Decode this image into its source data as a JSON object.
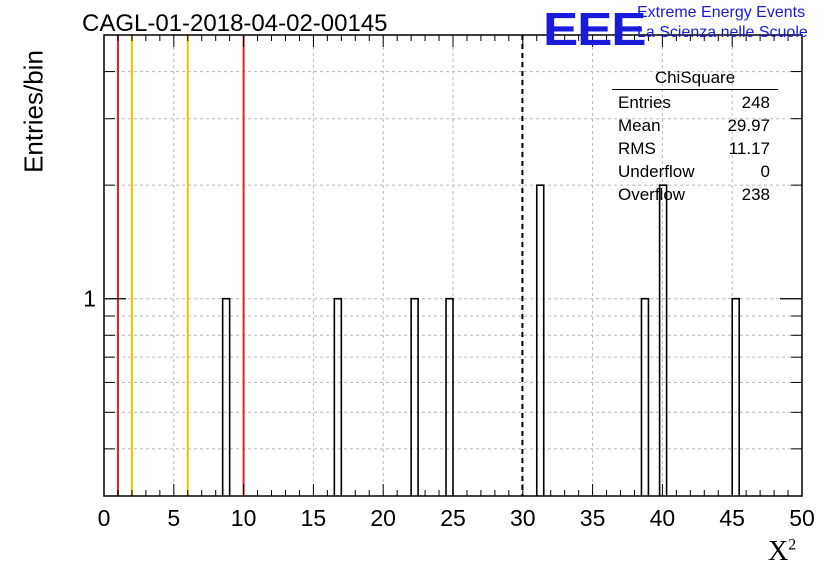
{
  "header": {
    "run_title": "CAGL-01-2018-04-02-00145",
    "logo_text": "EEE",
    "logo_line1": "Extreme Energy Events",
    "logo_line2": "La Scienza nelle Scuole"
  },
  "stats_box": {
    "title": "ChiSquare",
    "rows": [
      {
        "label": "Entries",
        "value": "248"
      },
      {
        "label": "Mean",
        "value": "29.97"
      },
      {
        "label": "RMS",
        "value": "11.17"
      },
      {
        "label": "Underflow",
        "value": "0"
      },
      {
        "label": "Overflow",
        "value": "238"
      }
    ]
  },
  "chart_data": {
    "type": "bar",
    "title": "CAGL-01-2018-04-02-00145",
    "xlabel": "X",
    "xlabel_sup": "2",
    "ylabel": "Entries/bin",
    "xlim": [
      0,
      50
    ],
    "ylim": [
      0.3,
      5
    ],
    "y_scale": "log",
    "grid": true,
    "x_ticks": [
      0,
      5,
      10,
      15,
      20,
      25,
      30,
      35,
      40,
      45,
      50
    ],
    "y_tick_labels": [
      {
        "value": 1,
        "label": "1"
      }
    ],
    "bin_width": 0.5,
    "bins": [
      {
        "x": 8.5,
        "count": 1
      },
      {
        "x": 16.5,
        "count": 1
      },
      {
        "x": 22.0,
        "count": 1
      },
      {
        "x": 24.5,
        "count": 1
      },
      {
        "x": 31.0,
        "count": 2
      },
      {
        "x": 38.5,
        "count": 1
      },
      {
        "x": 39.8,
        "count": 2
      },
      {
        "x": 45.0,
        "count": 1
      }
    ],
    "vertical_lines": [
      {
        "x": 1,
        "color": "#dd2222",
        "style": "solid"
      },
      {
        "x": 2,
        "color": "#f2c200",
        "style": "solid"
      },
      {
        "x": 6,
        "color": "#f2c200",
        "style": "solid"
      },
      {
        "x": 10,
        "color": "#dd2222",
        "style": "solid"
      },
      {
        "x": 29.97,
        "color": "#000000",
        "style": "dashed"
      }
    ]
  }
}
